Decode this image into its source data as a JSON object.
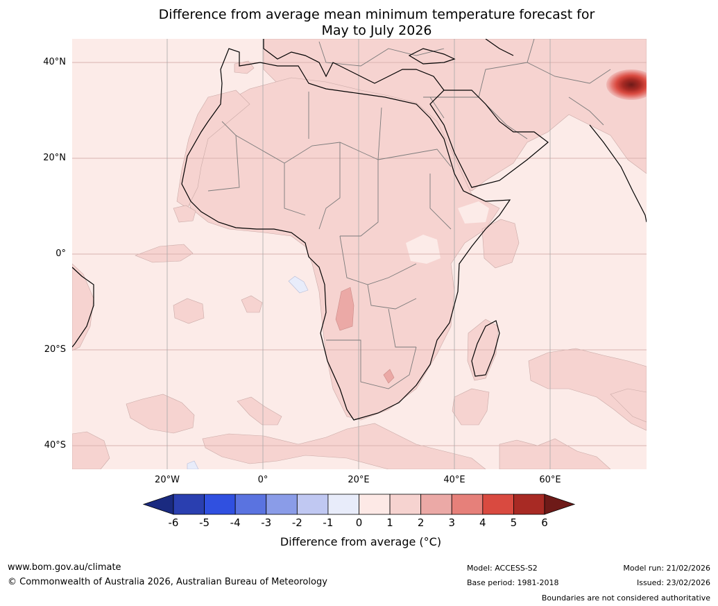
{
  "title_line1": "Difference from average mean minimum temperature forecast for",
  "title_line2": "May to July 2026",
  "lat_labels": [
    "40°N",
    "20°N",
    "0°",
    "20°S",
    "40°S"
  ],
  "lon_labels": [
    "20°W",
    "0°",
    "20°E",
    "40°E",
    "60°E"
  ],
  "colorbar": {
    "ticks": [
      "-6",
      "-5",
      "-4",
      "-3",
      "-2",
      "-1",
      "0",
      "1",
      "2",
      "3",
      "4",
      "5",
      "6"
    ],
    "colors": [
      "#1a2a80",
      "#2a3fb0",
      "#3050e0",
      "#5a73e0",
      "#8a9ce8",
      "#c0c8f2",
      "#e8ecfa",
      "#fde9e6",
      "#f6d3d0",
      "#eba9a6",
      "#e6807a",
      "#d94a40",
      "#a82a24",
      "#6e1a18"
    ],
    "label": "Difference from average (°C)"
  },
  "colors": {
    "sea_base": "#fcebe8",
    "land_base": "#f5d5d2",
    "warm_patch": "#eba9a6",
    "hot_core": "#a82a24",
    "cool_patch": "#e8ecfa",
    "grid": "#d9b3b0",
    "coast": "#000000",
    "border": "#7a7a7a"
  },
  "footer": {
    "website": "www.bom.gov.au/climate",
    "copyright": "© Commonwealth of Australia 2026, Australian Bureau of Meteorology",
    "model": "Model: ACCESS-S2",
    "base_period": "Base period: 1981-2018",
    "model_run": "Model run: 21/02/2026",
    "issued": "Issued: 23/02/2026",
    "disclaimer": "Boundaries are not considered authoritative"
  }
}
